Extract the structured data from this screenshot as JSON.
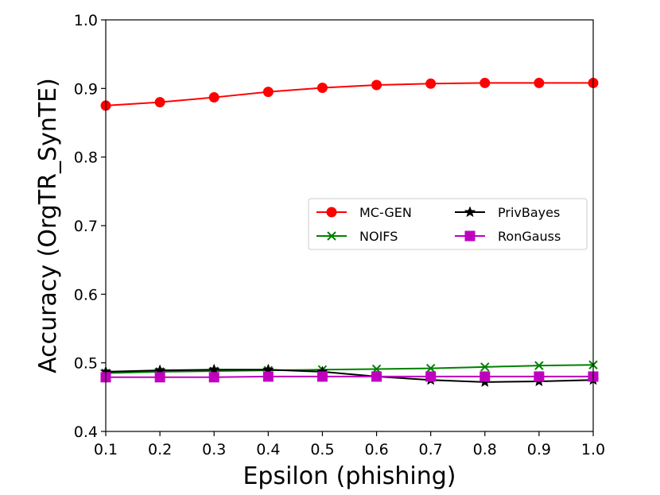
{
  "chart_data": {
    "type": "line",
    "xlabel": "Epsilon (phishing)",
    "ylabel": "Accuracy (OrgTR_SynTE)",
    "xlim": [
      0.1,
      1.0
    ],
    "ylim": [
      0.4,
      1.0
    ],
    "xticks": [
      "0.1",
      "0.2",
      "0.3",
      "0.4",
      "0.5",
      "0.6",
      "0.7",
      "0.8",
      "0.9",
      "1.0"
    ],
    "yticks": [
      "0.4",
      "0.5",
      "0.6",
      "0.7",
      "0.8",
      "0.9",
      "1.0"
    ],
    "x": [
      0.1,
      0.2,
      0.3,
      0.4,
      0.5,
      0.6,
      0.7,
      0.8,
      0.9,
      1.0
    ],
    "grid": false,
    "legend_position": "center-right",
    "legend_columns": 2,
    "series": [
      {
        "name": "MC-GEN",
        "color": "#ff0000",
        "marker": "circle",
        "values": [
          0.875,
          0.88,
          0.887,
          0.895,
          0.901,
          0.905,
          0.907,
          0.908,
          0.908,
          0.908
        ]
      },
      {
        "name": "NOIFS",
        "color": "#008000",
        "marker": "x",
        "values": [
          0.485,
          0.487,
          0.488,
          0.489,
          0.49,
          0.491,
          0.492,
          0.494,
          0.496,
          0.497
        ]
      },
      {
        "name": "PrivBayes",
        "color": "#000000",
        "marker": "star",
        "values": [
          0.487,
          0.489,
          0.49,
          0.49,
          0.487,
          0.48,
          0.475,
          0.472,
          0.473,
          0.475
        ]
      },
      {
        "name": "RonGauss",
        "color": "#bf00bf",
        "marker": "square",
        "values": [
          0.479,
          0.479,
          0.479,
          0.48,
          0.48,
          0.48,
          0.48,
          0.48,
          0.48,
          0.48
        ]
      }
    ]
  }
}
